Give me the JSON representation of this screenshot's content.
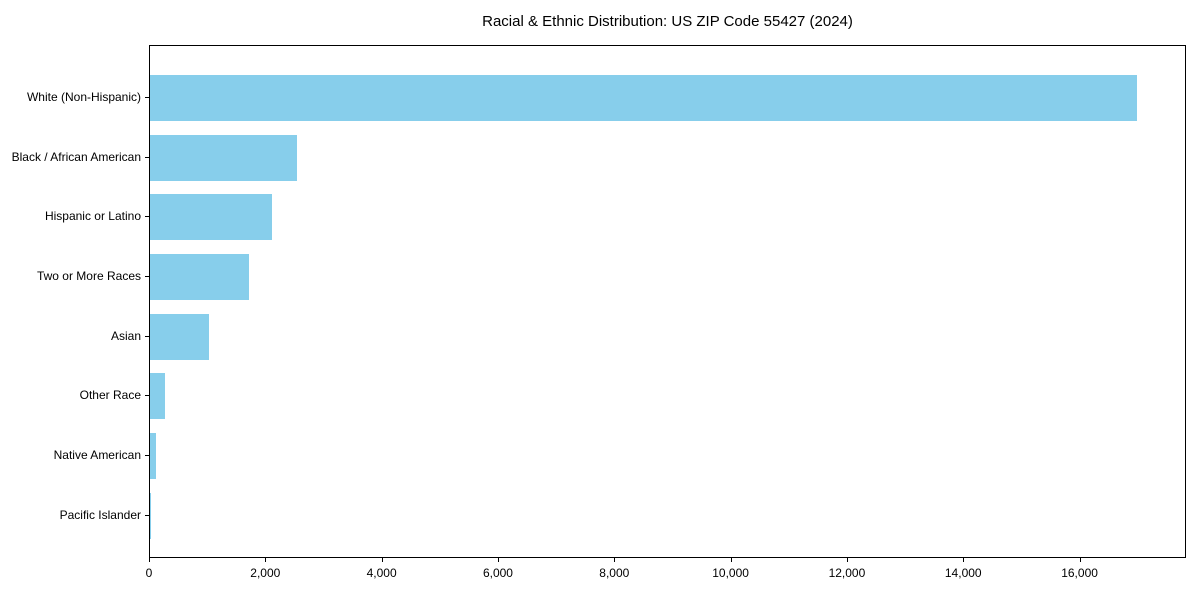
{
  "chart_data": {
    "type": "bar",
    "orientation": "horizontal",
    "title": "Racial & Ethnic Distribution: US ZIP Code 55427 (2024)",
    "categories": [
      "White (Non-Hispanic)",
      "Black / African American",
      "Hispanic or Latino",
      "Two or More Races",
      "Asian",
      "Other Race",
      "Native American",
      "Pacific Islander"
    ],
    "values": [
      17000,
      2530,
      2100,
      1710,
      1020,
      260,
      100,
      10
    ],
    "xlabel": "",
    "ylabel": "",
    "xlim": [
      0,
      17830
    ],
    "xticks": [
      0,
      2000,
      4000,
      6000,
      8000,
      10000,
      12000,
      14000,
      16000
    ],
    "xtick_labels": [
      "0",
      "2,000",
      "4,000",
      "6,000",
      "8,000",
      "10,000",
      "12,000",
      "14,000",
      "16,000"
    ],
    "bar_color": "#87CEEB",
    "axis_color": "#000000",
    "text_color": "#000000",
    "background_color": "#ffffff",
    "grid": false,
    "legend": null
  }
}
